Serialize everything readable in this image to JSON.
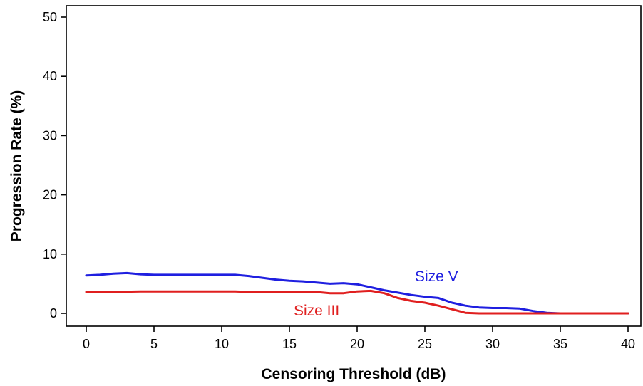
{
  "chart_data": {
    "type": "line",
    "title": "",
    "xlabel": "Censoring Threshold (dB)",
    "ylabel": "Progression Rate (%)",
    "xlim": [
      0,
      40
    ],
    "ylim": [
      0,
      50
    ],
    "xticks": [
      0,
      5,
      10,
      15,
      20,
      25,
      30,
      35,
      40
    ],
    "yticks": [
      0,
      10,
      20,
      30,
      40,
      50
    ],
    "grid": false,
    "series": [
      {
        "name": "Size V",
        "color": "#1f1fe0",
        "points": [
          [
            0,
            6.4
          ],
          [
            1,
            6.5
          ],
          [
            2,
            6.7
          ],
          [
            3,
            6.8
          ],
          [
            4,
            6.6
          ],
          [
            5,
            6.5
          ],
          [
            6,
            6.5
          ],
          [
            7,
            6.5
          ],
          [
            8,
            6.5
          ],
          [
            9,
            6.5
          ],
          [
            10,
            6.5
          ],
          [
            11,
            6.5
          ],
          [
            12,
            6.3
          ],
          [
            13,
            6.0
          ],
          [
            14,
            5.7
          ],
          [
            15,
            5.5
          ],
          [
            16,
            5.4
          ],
          [
            17,
            5.2
          ],
          [
            18,
            5.0
          ],
          [
            19,
            5.1
          ],
          [
            20,
            4.9
          ],
          [
            21,
            4.4
          ],
          [
            22,
            3.9
          ],
          [
            23,
            3.5
          ],
          [
            24,
            3.1
          ],
          [
            25,
            2.8
          ],
          [
            26,
            2.6
          ],
          [
            27,
            1.8
          ],
          [
            28,
            1.3
          ],
          [
            29,
            1.0
          ],
          [
            30,
            0.9
          ],
          [
            31,
            0.9
          ],
          [
            32,
            0.8
          ],
          [
            33,
            0.4
          ],
          [
            34,
            0.1
          ],
          [
            35,
            0.0
          ],
          [
            36,
            0.0
          ],
          [
            37,
            0.0
          ],
          [
            38,
            0.0
          ],
          [
            39,
            0.0
          ],
          [
            40,
            0.0
          ]
        ]
      },
      {
        "name": "Size III",
        "color": "#e01f1f",
        "points": [
          [
            0,
            3.6
          ],
          [
            2,
            3.6
          ],
          [
            4,
            3.7
          ],
          [
            6,
            3.7
          ],
          [
            8,
            3.7
          ],
          [
            10,
            3.7
          ],
          [
            11,
            3.7
          ],
          [
            12,
            3.6
          ],
          [
            14,
            3.6
          ],
          [
            16,
            3.6
          ],
          [
            17,
            3.6
          ],
          [
            18,
            3.4
          ],
          [
            19,
            3.4
          ],
          [
            20,
            3.7
          ],
          [
            21,
            3.8
          ],
          [
            22,
            3.4
          ],
          [
            23,
            2.6
          ],
          [
            24,
            2.1
          ],
          [
            25,
            1.8
          ],
          [
            26,
            1.3
          ],
          [
            27,
            0.7
          ],
          [
            28,
            0.1
          ],
          [
            29,
            0.0
          ],
          [
            30,
            0.0
          ],
          [
            32,
            0.0
          ],
          [
            34,
            0.0
          ],
          [
            36,
            0.0
          ],
          [
            38,
            0.0
          ],
          [
            39,
            0.0
          ],
          [
            40,
            0.0
          ]
        ]
      }
    ]
  }
}
